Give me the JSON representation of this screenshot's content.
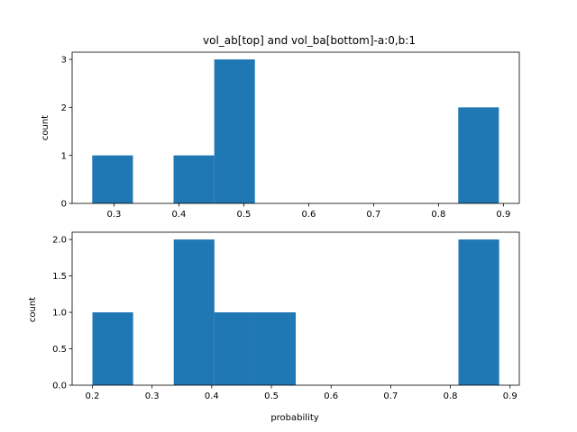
{
  "chart_data": [
    {
      "type": "bar",
      "title": "vol_ab[top] and vol_ba[bottom]-a:0,b:1",
      "xlabel": "",
      "ylabel": "count",
      "xlim": [
        0.2355,
        0.9245
      ],
      "ylim": [
        0,
        3.15
      ],
      "xticks": [
        0.3,
        0.4,
        0.5,
        0.6,
        0.7,
        0.8,
        0.9
      ],
      "xtick_labels": [
        "0.3",
        "0.4",
        "0.5",
        "0.6",
        "0.7",
        "0.8",
        "0.9"
      ],
      "yticks": [
        0,
        1,
        2,
        3
      ],
      "ytick_labels": [
        "0",
        "1",
        "2",
        "3"
      ],
      "grid": false,
      "color": "#1f77b4",
      "bins": [
        {
          "x0": 0.2665,
          "x1": 0.3292,
          "value": 1
        },
        {
          "x0": 0.3292,
          "x1": 0.3918,
          "value": 0
        },
        {
          "x0": 0.3918,
          "x1": 0.4545,
          "value": 1
        },
        {
          "x0": 0.4545,
          "x1": 0.5171,
          "value": 3
        },
        {
          "x0": 0.5171,
          "x1": 0.5798,
          "value": 0
        },
        {
          "x0": 0.5798,
          "x1": 0.6424,
          "value": 0
        },
        {
          "x0": 0.6424,
          "x1": 0.7051,
          "value": 0
        },
        {
          "x0": 0.7051,
          "x1": 0.7677,
          "value": 0
        },
        {
          "x0": 0.7677,
          "x1": 0.8304,
          "value": 0
        },
        {
          "x0": 0.8304,
          "x1": 0.893,
          "value": 2
        }
      ]
    },
    {
      "type": "bar",
      "title": "",
      "xlabel": "probability",
      "ylabel": "count",
      "xlim": [
        0.166,
        0.9155
      ],
      "ylim": [
        0,
        2.1
      ],
      "xticks": [
        0.2,
        0.3,
        0.4,
        0.5,
        0.6,
        0.7,
        0.8,
        0.9
      ],
      "xtick_labels": [
        "0.2",
        "0.3",
        "0.4",
        "0.5",
        "0.6",
        "0.7",
        "0.8",
        "0.9"
      ],
      "yticks": [
        0,
        0.5,
        1.0,
        1.5,
        2.0
      ],
      "ytick_labels": [
        "0.0",
        "0.5",
        "1.0",
        "1.5",
        "2.0"
      ],
      "grid": false,
      "color": "#1f77b4",
      "bins": [
        {
          "x0": 0.2,
          "x1": 0.2682,
          "value": 1
        },
        {
          "x0": 0.2682,
          "x1": 0.3363,
          "value": 0
        },
        {
          "x0": 0.3363,
          "x1": 0.4045,
          "value": 2
        },
        {
          "x0": 0.4045,
          "x1": 0.4727,
          "value": 1
        },
        {
          "x0": 0.4727,
          "x1": 0.5408,
          "value": 1
        },
        {
          "x0": 0.5408,
          "x1": 0.609,
          "value": 0
        },
        {
          "x0": 0.609,
          "x1": 0.6772,
          "value": 0
        },
        {
          "x0": 0.6772,
          "x1": 0.7453,
          "value": 0
        },
        {
          "x0": 0.7453,
          "x1": 0.8135,
          "value": 0
        },
        {
          "x0": 0.8135,
          "x1": 0.8817,
          "value": 2
        }
      ]
    }
  ]
}
